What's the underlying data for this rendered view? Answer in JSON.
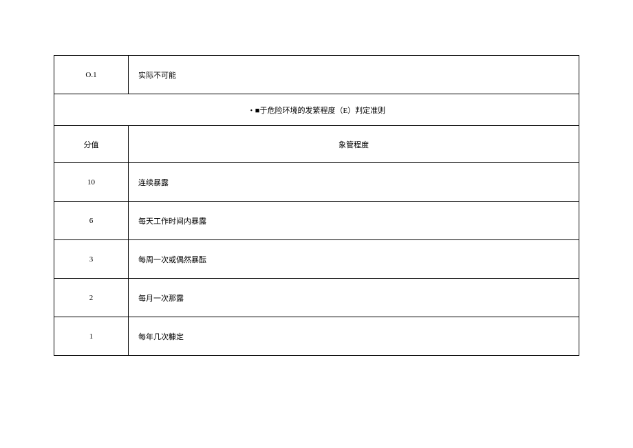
{
  "top_row": {
    "score": "O.1",
    "desc": "实际不可能"
  },
  "title_row": "・■于危险环境的发繁程度（E）判定准则",
  "header": {
    "score": "分值",
    "desc": "象管程度"
  },
  "rows": [
    {
      "score": "10",
      "desc": "连续暴露"
    },
    {
      "score": "6",
      "desc": "每天工作时间内暴露"
    },
    {
      "score": "3",
      "desc": "每周一次或偶然暴酝"
    },
    {
      "score": "2",
      "desc": "每月一次那露"
    },
    {
      "score": "1",
      "desc": "每年几次糠定"
    }
  ],
  "colors": {
    "border": "#000000",
    "background": "#ffffff",
    "text": "#000000"
  },
  "font": {
    "size_pt": 11
  }
}
